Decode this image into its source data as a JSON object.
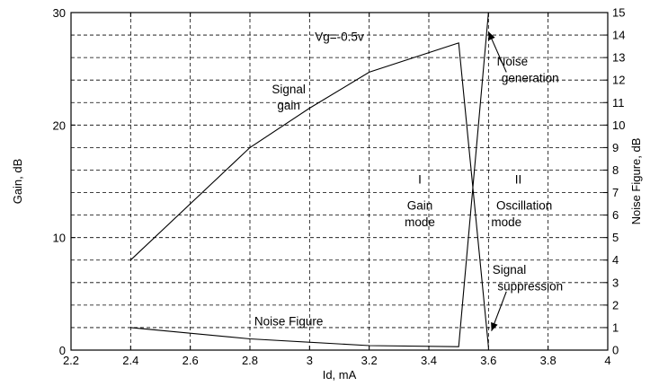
{
  "chart_data": {
    "type": "line",
    "xlabel": "Id, mA",
    "ylabel_left": "Gain, dB",
    "ylabel_right": "Noise Figure, dB",
    "xlim": [
      2.2,
      4.0
    ],
    "ylim_left": [
      0,
      30
    ],
    "ylim_right": [
      0,
      15
    ],
    "x_ticks": [
      "2.2",
      "2.4",
      "2.6",
      "2.8",
      "3",
      "3.2",
      "3.4",
      "3.6",
      "3.8",
      "4"
    ],
    "y_left_ticks": [
      "0",
      "10",
      "20",
      "30"
    ],
    "y_right_ticks": [
      "0",
      "1",
      "2",
      "3",
      "4",
      "5",
      "6",
      "7",
      "8",
      "9",
      "10",
      "11",
      "12",
      "13",
      "14",
      "15"
    ],
    "grid": true,
    "series": [
      {
        "name": "Signal gain",
        "axis": "left",
        "x": [
          2.4,
          2.8,
          3.0,
          3.2,
          3.5,
          3.6
        ],
        "y": [
          8.0,
          18.0,
          21.5,
          24.7,
          27.3,
          0.3
        ]
      },
      {
        "name": "Noise Figure",
        "axis": "right",
        "x": [
          2.4,
          2.8,
          3.2,
          3.5,
          3.6
        ],
        "y": [
          1.0,
          0.5,
          0.2,
          0.15,
          15.0
        ]
      }
    ],
    "annotations": [
      {
        "text": "Vg=-0.5v",
        "x": 3.1,
        "y_left": 27.5
      },
      {
        "text": "Signal",
        "x": 2.93,
        "y_left": 22.8
      },
      {
        "text": "gain",
        "x": 2.93,
        "y_left": 21.4
      },
      {
        "text": "I",
        "x": 3.37,
        "y_left": 14.8
      },
      {
        "text": "Gain",
        "x": 3.37,
        "y_left": 12.5
      },
      {
        "text": "mode",
        "x": 3.37,
        "y_left": 11.0
      },
      {
        "text": "II",
        "x": 3.7,
        "y_left": 14.8
      },
      {
        "text": "Oscillation",
        "x": 3.72,
        "y_left": 12.5
      },
      {
        "text": "mode",
        "x": 3.66,
        "y_left": 11.0
      },
      {
        "text": "Noise",
        "x": 3.68,
        "y_left": 25.3
      },
      {
        "text": "generation",
        "x": 3.74,
        "y_left": 23.8
      },
      {
        "text": "Signal",
        "x": 3.67,
        "y_left": 6.8
      },
      {
        "text": "suppression",
        "x": 3.74,
        "y_left": 5.3
      },
      {
        "text": "Noise Figure",
        "x": 2.93,
        "y_left": 2.2
      }
    ],
    "arrows": [
      {
        "target": "Noise generation",
        "from_x": 3.66,
        "from_y_left": 24.7,
        "to_x": 3.6,
        "to_y_left": 28.3
      },
      {
        "target": "Signal suppression",
        "from_x": 3.66,
        "from_y_left": 5.2,
        "to_x": 3.61,
        "to_y_left": 1.7
      }
    ]
  }
}
